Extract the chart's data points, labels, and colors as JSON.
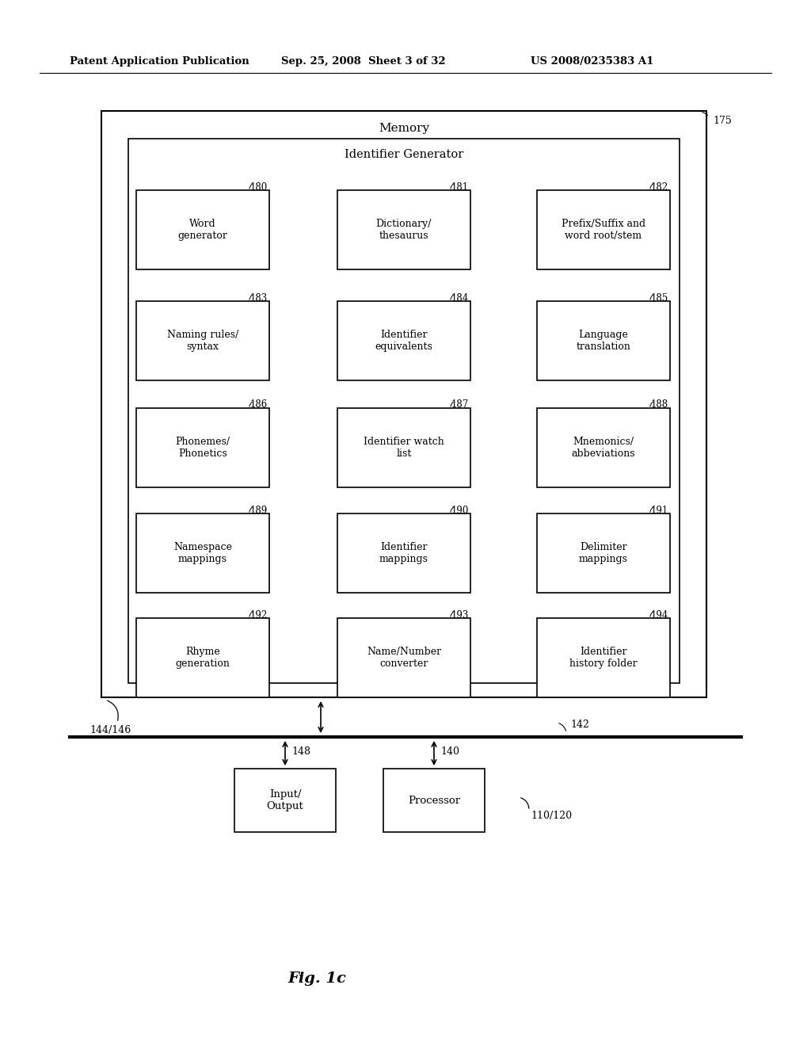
{
  "bg_color": "#ffffff",
  "header_text": "Patent Application Publication",
  "header_date": "Sep. 25, 2008  Sheet 3 of 32",
  "header_patent": "US 2008/0235383 A1",
  "fig_label": "Fig. 1c",
  "outer_box_label": "Memory",
  "outer_box_ref": "175",
  "inner_box_label": "Identifier Generator",
  "boxes": [
    {
      "ref": "180",
      "lines": [
        "Word",
        "generator"
      ],
      "row": 0,
      "col": 0
    },
    {
      "ref": "181",
      "lines": [
        "Dictionary/",
        "thesaurus"
      ],
      "row": 0,
      "col": 1
    },
    {
      "ref": "182",
      "lines": [
        "Prefix/Suffix and",
        "word root/stem"
      ],
      "row": 0,
      "col": 2
    },
    {
      "ref": "183",
      "lines": [
        "Naming rules/",
        "syntax"
      ],
      "row": 1,
      "col": 0
    },
    {
      "ref": "184",
      "lines": [
        "Identifier",
        "equivalents"
      ],
      "row": 1,
      "col": 1
    },
    {
      "ref": "185",
      "lines": [
        "Language",
        "translation"
      ],
      "row": 1,
      "col": 2
    },
    {
      "ref": "186",
      "lines": [
        "Phonemes/",
        "Phonetics"
      ],
      "row": 2,
      "col": 0
    },
    {
      "ref": "187",
      "lines": [
        "Identifier watch",
        "list"
      ],
      "row": 2,
      "col": 1
    },
    {
      "ref": "188",
      "lines": [
        "Mnemonics/",
        "abbeviations"
      ],
      "row": 2,
      "col": 2
    },
    {
      "ref": "189",
      "lines": [
        "Namespace",
        "mappings"
      ],
      "row": 3,
      "col": 0
    },
    {
      "ref": "190",
      "lines": [
        "Identifier",
        "mappings"
      ],
      "row": 3,
      "col": 1
    },
    {
      "ref": "191",
      "lines": [
        "Delimiter",
        "mappings"
      ],
      "row": 3,
      "col": 2
    },
    {
      "ref": "192",
      "lines": [
        "Rhyme",
        "generation"
      ],
      "row": 4,
      "col": 0
    },
    {
      "ref": "193",
      "lines": [
        "Name/Number",
        "converter"
      ],
      "row": 4,
      "col": 1
    },
    {
      "ref": "194",
      "lines": [
        "Identifier",
        "history folder"
      ],
      "row": 4,
      "col": 2
    }
  ],
  "bus_ref": "142",
  "outer_ref": "144/146",
  "system_ref": "110/120",
  "io_box_ref": "148",
  "io_box_lines": [
    "Input/",
    "Output"
  ],
  "proc_box_ref": "140",
  "proc_box_lines": [
    "Processor"
  ]
}
